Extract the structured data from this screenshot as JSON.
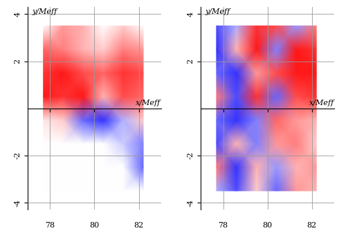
{
  "chart_data": [
    {
      "type": "heatmap",
      "x_label": "x/Meff",
      "y_label": "y/Meff",
      "x": [
        77.7,
        78.6,
        79.5,
        80.4,
        81.3,
        82.2
      ],
      "y": [
        -3.5,
        -2.5,
        -1.5,
        -0.5,
        0.5,
        1.5,
        2.5,
        3.5
      ],
      "cells": [
        [
          0,
          0,
          0,
          0,
          0,
          0
        ],
        [
          0,
          0,
          0,
          0,
          0,
          -0.6
        ],
        [
          0,
          0,
          0,
          0,
          -0.2,
          -0.5
        ],
        [
          0.1,
          0.2,
          -0.6,
          -0.8,
          -0.3,
          0.2
        ],
        [
          0.9,
          0.8,
          0.9,
          0.3,
          0.7,
          0.6
        ],
        [
          0.8,
          0.9,
          0.7,
          0.6,
          0.8,
          0.7
        ],
        [
          0.6,
          0.5,
          0.3,
          0.2,
          0.5,
          0.4
        ],
        [
          0,
          0.4,
          0.3,
          0,
          0.2,
          0
        ]
      ],
      "zlim": [
        -1,
        1
      ],
      "xlim": [
        77,
        83
      ],
      "ylim": [
        -4.3,
        4.3
      ],
      "xticks": [
        78,
        80,
        82
      ],
      "yticks": [
        -4,
        -2,
        2,
        4
      ],
      "grid": true
    },
    {
      "type": "heatmap",
      "x_label": "x/Meff",
      "y_label": "y/Meff",
      "x": [
        77.7,
        78.6,
        79.5,
        80.4,
        81.3,
        82.2
      ],
      "y": [
        -3.5,
        -2.5,
        -1.5,
        -0.5,
        0.5,
        1.5,
        2.5,
        3.5
      ],
      "cells": [
        [
          -0.3,
          -0.7,
          0.2,
          -0.6,
          0.4,
          0.3
        ],
        [
          0.5,
          -0.8,
          0.3,
          -0.4,
          0.3,
          0.4
        ],
        [
          -0.7,
          0.3,
          -0.5,
          0.4,
          0.5,
          0.2
        ],
        [
          -0.6,
          -0.8,
          -0.5,
          0.6,
          0.4,
          0.3
        ],
        [
          0.5,
          -0.7,
          0.8,
          -0.6,
          0.7,
          0.8
        ],
        [
          -0.6,
          -0.8,
          0.4,
          0.7,
          0.9,
          0.9
        ],
        [
          -0.8,
          0.3,
          0.9,
          -0.5,
          0.9,
          0.8
        ],
        [
          -0.7,
          -0.3,
          0.8,
          0.7,
          -0.4,
          0.5
        ]
      ],
      "zlim": [
        -1,
        1
      ],
      "xlim": [
        77,
        83
      ],
      "ylim": [
        -4.3,
        4.3
      ],
      "xticks": [
        78,
        80,
        82
      ],
      "yticks": [
        -4,
        -2,
        2,
        4
      ],
      "grid": true
    }
  ]
}
